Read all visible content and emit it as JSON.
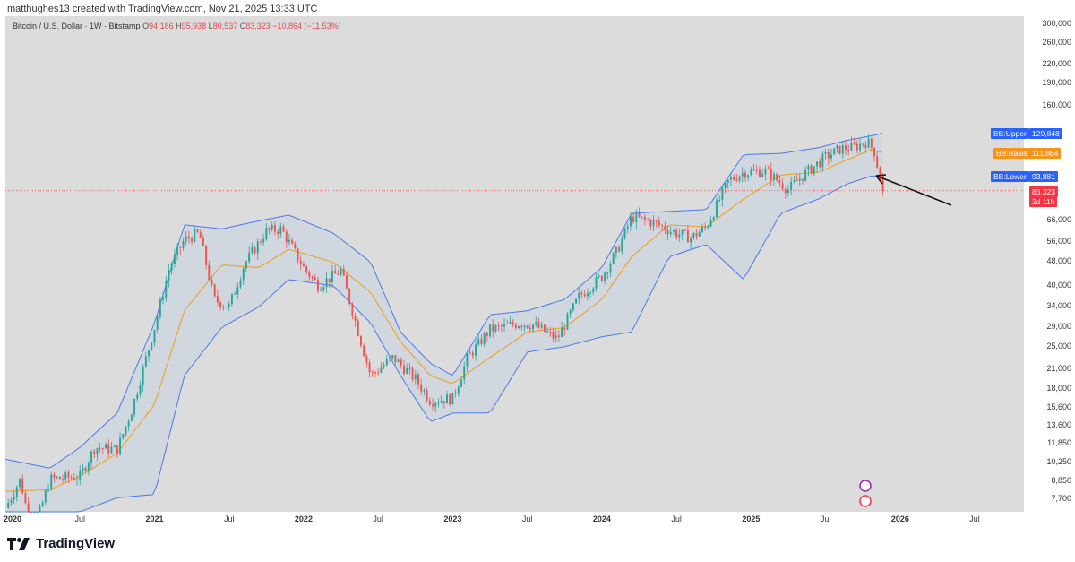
{
  "header": {
    "attribution": "matthughes13 created with TradingView.com, Nov 21, 2025 13:33 UTC"
  },
  "legend": {
    "symbol": "Bitcoin / U.S. Dollar · 1W · Bitstamp",
    "o_label": "O",
    "o": "94,186",
    "h_label": "H",
    "h": "95,938",
    "l_label": "L",
    "l": "80,537",
    "c_label": "C",
    "c": "83,323",
    "change": "−10,864 (−11.53%)"
  },
  "tags": {
    "upper_name": "BB:Upper",
    "upper_value": "129,848",
    "basis_name": "BB:Basis",
    "basis_value": "111,864",
    "lower_name": "BB:Lower",
    "lower_value": "93,881",
    "price_value": "83,323",
    "countdown": "2d 11h"
  },
  "footer": {
    "brand": "TradingView"
  },
  "colors": {
    "up": "#26a69a",
    "down": "#ef5350",
    "band": "#4a7be8",
    "basis": "#f39c12",
    "price_tag": "#f23645",
    "upper_tag": "#2962ff",
    "basis_tag": "#f7931a"
  },
  "chart_data": {
    "type": "candlestick",
    "scale": "log",
    "interval": "1W",
    "ylim": [
      7000,
      320000
    ],
    "y_ticks": [
      300000,
      260000,
      220000,
      190000,
      160000,
      66000,
      56000,
      48000,
      40000,
      34000,
      29000,
      25000,
      21000,
      18000,
      15600,
      13600,
      11850,
      10250,
      8850,
      7700
    ],
    "y_tick_labels": [
      "300,000",
      "260,000",
      "220,000",
      "190,000",
      "160,000",
      "66,000",
      "56,000",
      "48,000",
      "40,000",
      "34,000",
      "29,000",
      "25,000",
      "21,000",
      "18,000",
      "15,600",
      "13,600",
      "11,850",
      "10,250",
      "8,850",
      "7,700"
    ],
    "x_ticks": [
      {
        "label": "2020",
        "t": 2020.0,
        "year": true
      },
      {
        "label": "Jul",
        "t": 2020.5,
        "year": false
      },
      {
        "label": "2021",
        "t": 2021.0,
        "year": true
      },
      {
        "label": "Jul",
        "t": 2021.5,
        "year": false
      },
      {
        "label": "2022",
        "t": 2022.0,
        "year": true
      },
      {
        "label": "Jul",
        "t": 2022.5,
        "year": false
      },
      {
        "label": "2023",
        "t": 2023.0,
        "year": true
      },
      {
        "label": "Jul",
        "t": 2023.5,
        "year": false
      },
      {
        "label": "2024",
        "t": 2024.0,
        "year": true
      },
      {
        "label": "Jul",
        "t": 2024.5,
        "year": false
      },
      {
        "label": "2025",
        "t": 2025.0,
        "year": true
      },
      {
        "label": "Jul",
        "t": 2025.5,
        "year": false
      },
      {
        "label": "2026",
        "t": 2026.0,
        "year": true
      },
      {
        "label": "Jul",
        "t": 2026.5,
        "year": false
      }
    ],
    "xlim": [
      2020.0,
      2026.83
    ],
    "price_path": [
      [
        2020.0,
        7200
      ],
      [
        2020.1,
        9000
      ],
      [
        2020.18,
        5800
      ],
      [
        2020.3,
        9000
      ],
      [
        2020.5,
        9200
      ],
      [
        2020.6,
        11500
      ],
      [
        2020.75,
        11300
      ],
      [
        2020.85,
        15500
      ],
      [
        2021.0,
        29000
      ],
      [
        2021.1,
        46000
      ],
      [
        2021.2,
        57000
      ],
      [
        2021.3,
        60000
      ],
      [
        2021.4,
        36000
      ],
      [
        2021.5,
        34000
      ],
      [
        2021.6,
        47000
      ],
      [
        2021.75,
        61000
      ],
      [
        2021.85,
        62000
      ],
      [
        2022.0,
        46000
      ],
      [
        2022.1,
        40000
      ],
      [
        2022.25,
        45000
      ],
      [
        2022.35,
        30000
      ],
      [
        2022.45,
        20000
      ],
      [
        2022.6,
        23000
      ],
      [
        2022.75,
        19500
      ],
      [
        2022.85,
        16500
      ],
      [
        2023.0,
        16800
      ],
      [
        2023.1,
        23000
      ],
      [
        2023.25,
        28500
      ],
      [
        2023.45,
        30000
      ],
      [
        2023.55,
        29500
      ],
      [
        2023.7,
        26500
      ],
      [
        2023.85,
        37000
      ],
      [
        2024.0,
        43000
      ],
      [
        2024.1,
        52000
      ],
      [
        2024.2,
        68000
      ],
      [
        2024.35,
        65000
      ],
      [
        2024.5,
        60000
      ],
      [
        2024.6,
        58000
      ],
      [
        2024.7,
        63000
      ],
      [
        2024.85,
        90000
      ],
      [
        2024.95,
        96000
      ],
      [
        2025.1,
        97000
      ],
      [
        2025.25,
        84000
      ],
      [
        2025.35,
        94000
      ],
      [
        2025.5,
        108000
      ],
      [
        2025.6,
        115000
      ],
      [
        2025.7,
        117000
      ],
      [
        2025.78,
        122000
      ],
      [
        2025.83,
        112000
      ],
      [
        2025.86,
        94186
      ],
      [
        2025.88,
        83323
      ]
    ],
    "series": [
      {
        "name": "BB:Upper",
        "points": [
          [
            2020.0,
            10500
          ],
          [
            2020.3,
            9800
          ],
          [
            2020.5,
            11500
          ],
          [
            2020.75,
            15000
          ],
          [
            2021.0,
            30000
          ],
          [
            2021.2,
            64000
          ],
          [
            2021.45,
            62000
          ],
          [
            2021.7,
            66000
          ],
          [
            2021.9,
            69000
          ],
          [
            2022.2,
            60000
          ],
          [
            2022.45,
            48000
          ],
          [
            2022.65,
            28000
          ],
          [
            2022.85,
            22000
          ],
          [
            2023.0,
            20000
          ],
          [
            2023.25,
            32000
          ],
          [
            2023.5,
            33000
          ],
          [
            2023.75,
            36000
          ],
          [
            2024.0,
            46000
          ],
          [
            2024.2,
            70000
          ],
          [
            2024.45,
            71000
          ],
          [
            2024.7,
            72000
          ],
          [
            2024.95,
            110000
          ],
          [
            2025.2,
            111000
          ],
          [
            2025.45,
            116000
          ],
          [
            2025.65,
            123000
          ],
          [
            2025.8,
            127000
          ],
          [
            2025.88,
            129848
          ]
        ]
      },
      {
        "name": "BB:Basis",
        "points": [
          [
            2020.0,
            8200
          ],
          [
            2020.3,
            8300
          ],
          [
            2020.5,
            9200
          ],
          [
            2020.75,
            11000
          ],
          [
            2021.0,
            16000
          ],
          [
            2021.2,
            33000
          ],
          [
            2021.45,
            47000
          ],
          [
            2021.7,
            46000
          ],
          [
            2021.9,
            53000
          ],
          [
            2022.2,
            48000
          ],
          [
            2022.45,
            38000
          ],
          [
            2022.65,
            26000
          ],
          [
            2022.85,
            20000
          ],
          [
            2023.0,
            18800
          ],
          [
            2023.25,
            23000
          ],
          [
            2023.5,
            28000
          ],
          [
            2023.75,
            29000
          ],
          [
            2024.0,
            36000
          ],
          [
            2024.2,
            50000
          ],
          [
            2024.45,
            64000
          ],
          [
            2024.7,
            63000
          ],
          [
            2024.95,
            78000
          ],
          [
            2025.2,
            94000
          ],
          [
            2025.45,
            96000
          ],
          [
            2025.65,
            106000
          ],
          [
            2025.8,
            114000
          ],
          [
            2025.88,
            111864
          ]
        ]
      },
      {
        "name": "BB:Lower",
        "points": [
          [
            2020.0,
            6800
          ],
          [
            2020.3,
            6900
          ],
          [
            2020.5,
            7000
          ],
          [
            2020.75,
            7800
          ],
          [
            2021.0,
            8000
          ],
          [
            2021.2,
            20000
          ],
          [
            2021.45,
            29000
          ],
          [
            2021.7,
            34000
          ],
          [
            2021.9,
            42000
          ],
          [
            2022.2,
            40000
          ],
          [
            2022.45,
            30000
          ],
          [
            2022.65,
            20000
          ],
          [
            2022.85,
            14000
          ],
          [
            2023.0,
            15000
          ],
          [
            2023.25,
            15000
          ],
          [
            2023.5,
            24000
          ],
          [
            2023.75,
            25000
          ],
          [
            2024.0,
            27000
          ],
          [
            2024.2,
            28000
          ],
          [
            2024.45,
            50000
          ],
          [
            2024.7,
            55000
          ],
          [
            2024.95,
            42000
          ],
          [
            2025.2,
            70000
          ],
          [
            2025.45,
            78000
          ],
          [
            2025.65,
            88000
          ],
          [
            2025.8,
            93000
          ],
          [
            2025.88,
            93881
          ]
        ]
      }
    ]
  }
}
